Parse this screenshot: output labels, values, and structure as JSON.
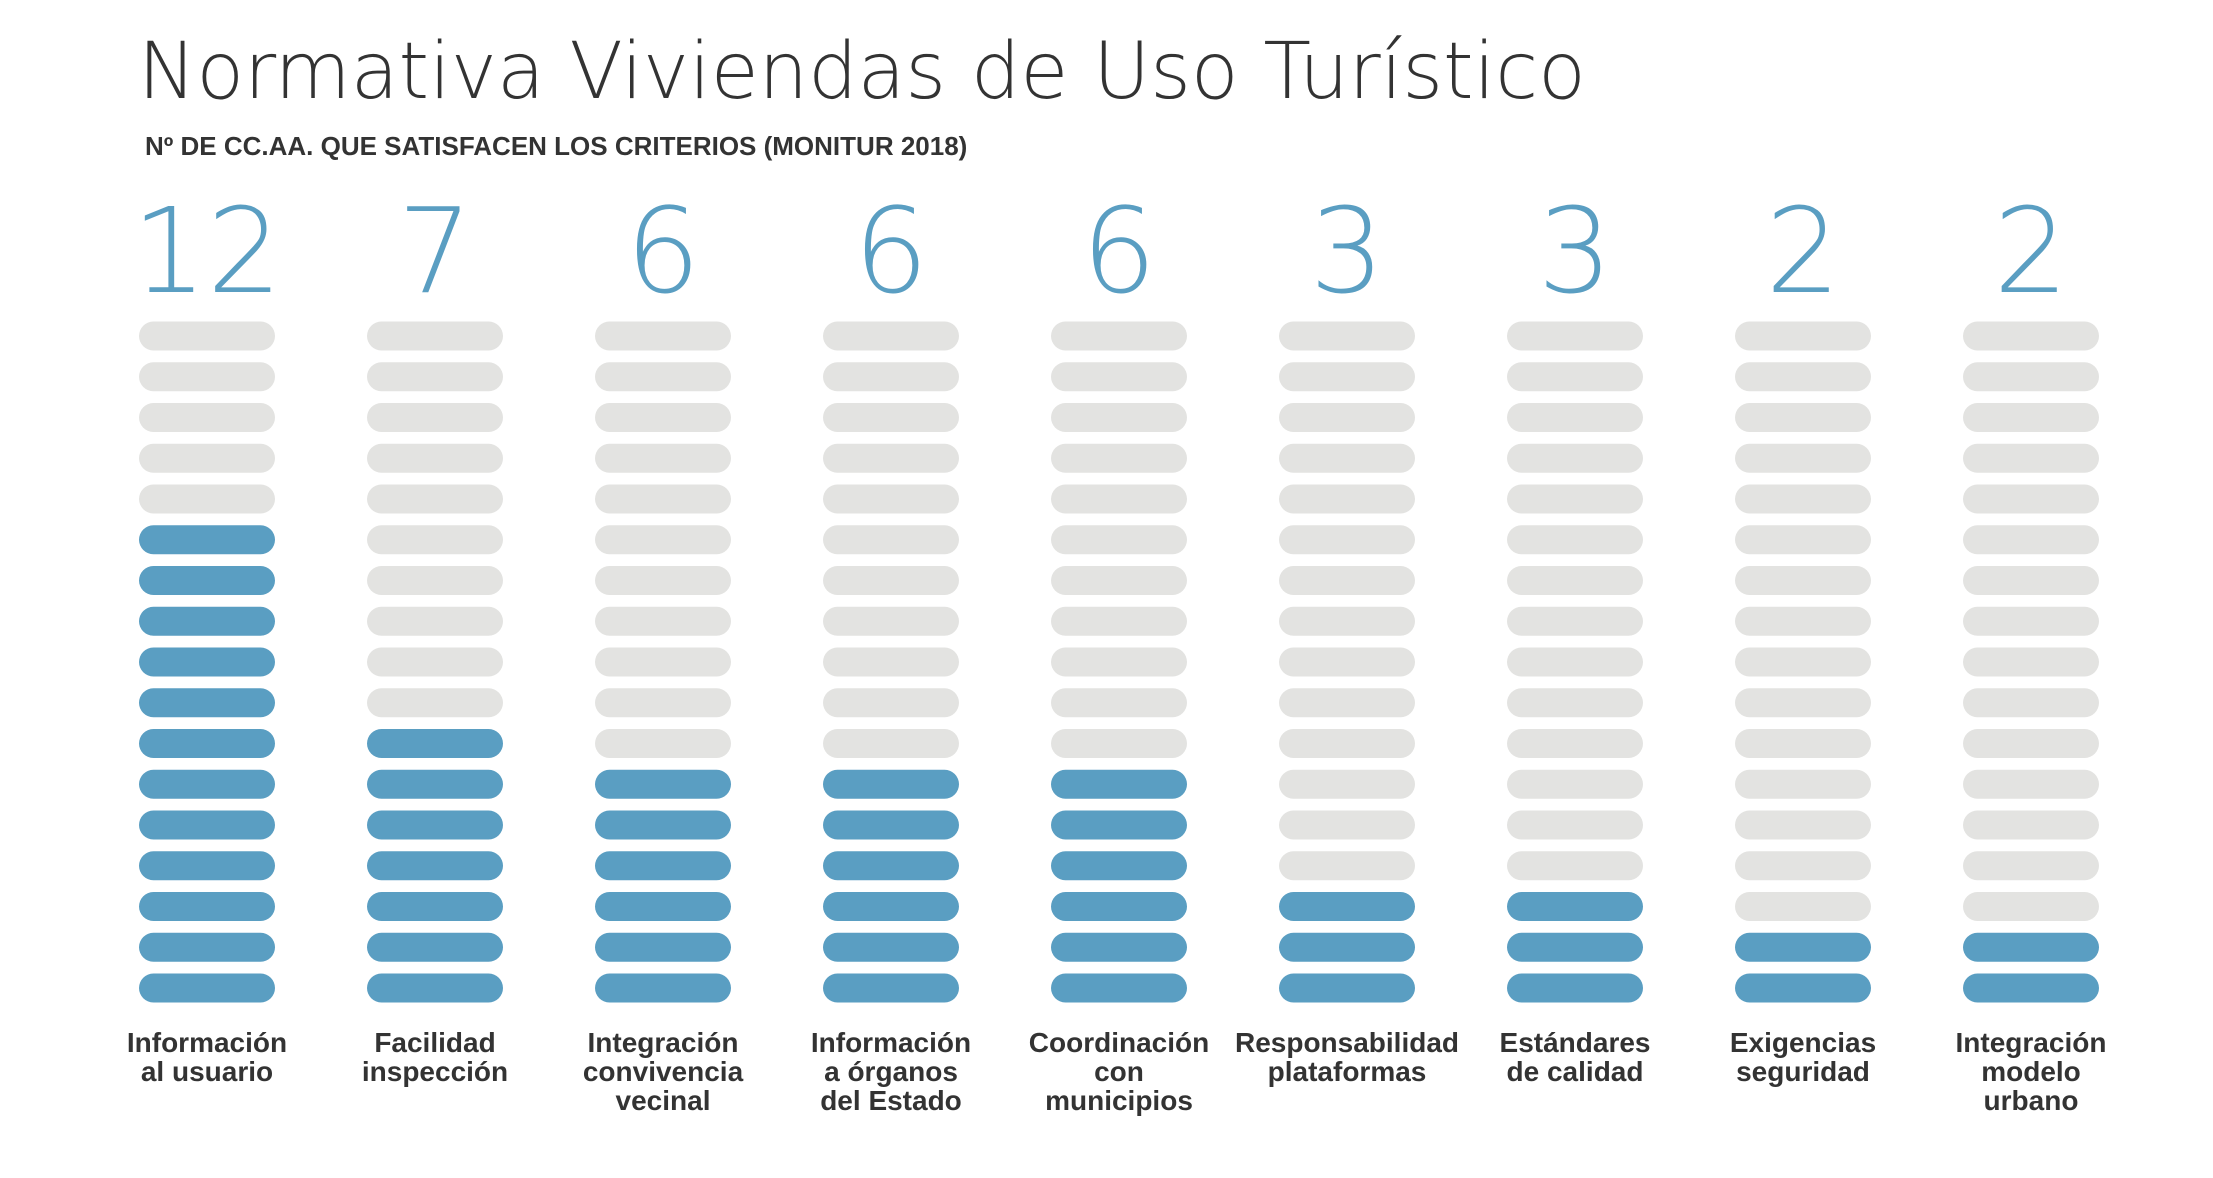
{
  "header": {
    "title": "Normativa Viviendas de Uso Turístico",
    "subtitle": "Nº DE CC.AA. QUE SATISFACEN LOS CRITERIOS (MONITUR 2018)"
  },
  "colors": {
    "filled": "#5a9ec2",
    "empty": "#e3e3e1",
    "text": "#333333"
  },
  "chart_data": {
    "type": "bar",
    "style": "stacked pill icons per category, 17 units per column",
    "title": "Normativa Viviendas de Uso Turístico",
    "subtitle": "Nº DE CC.AA. QUE SATISFACEN LOS CRITERIOS (MONITUR 2018)",
    "max_units": 17,
    "categories": [
      [
        "Información",
        "al usuario"
      ],
      [
        "Facilidad",
        "inspección"
      ],
      [
        "Integración",
        "convivencia",
        "vecinal"
      ],
      [
        "Información",
        "a órganos",
        "del Estado"
      ],
      [
        "Coordinación",
        "con",
        "municipios"
      ],
      [
        "Responsabilidad",
        "plataformas"
      ],
      [
        "Estándares",
        "de calidad"
      ],
      [
        "Exigencias",
        "seguridad"
      ],
      [
        "Integración",
        "modelo",
        "urbano"
      ]
    ],
    "values": [
      12,
      7,
      6,
      6,
      6,
      3,
      3,
      2,
      2
    ],
    "data_labels": [
      "12",
      "7",
      "6",
      "6",
      "6",
      "3",
      "3",
      "2",
      "2"
    ],
    "legend": "none",
    "grid": false
  }
}
